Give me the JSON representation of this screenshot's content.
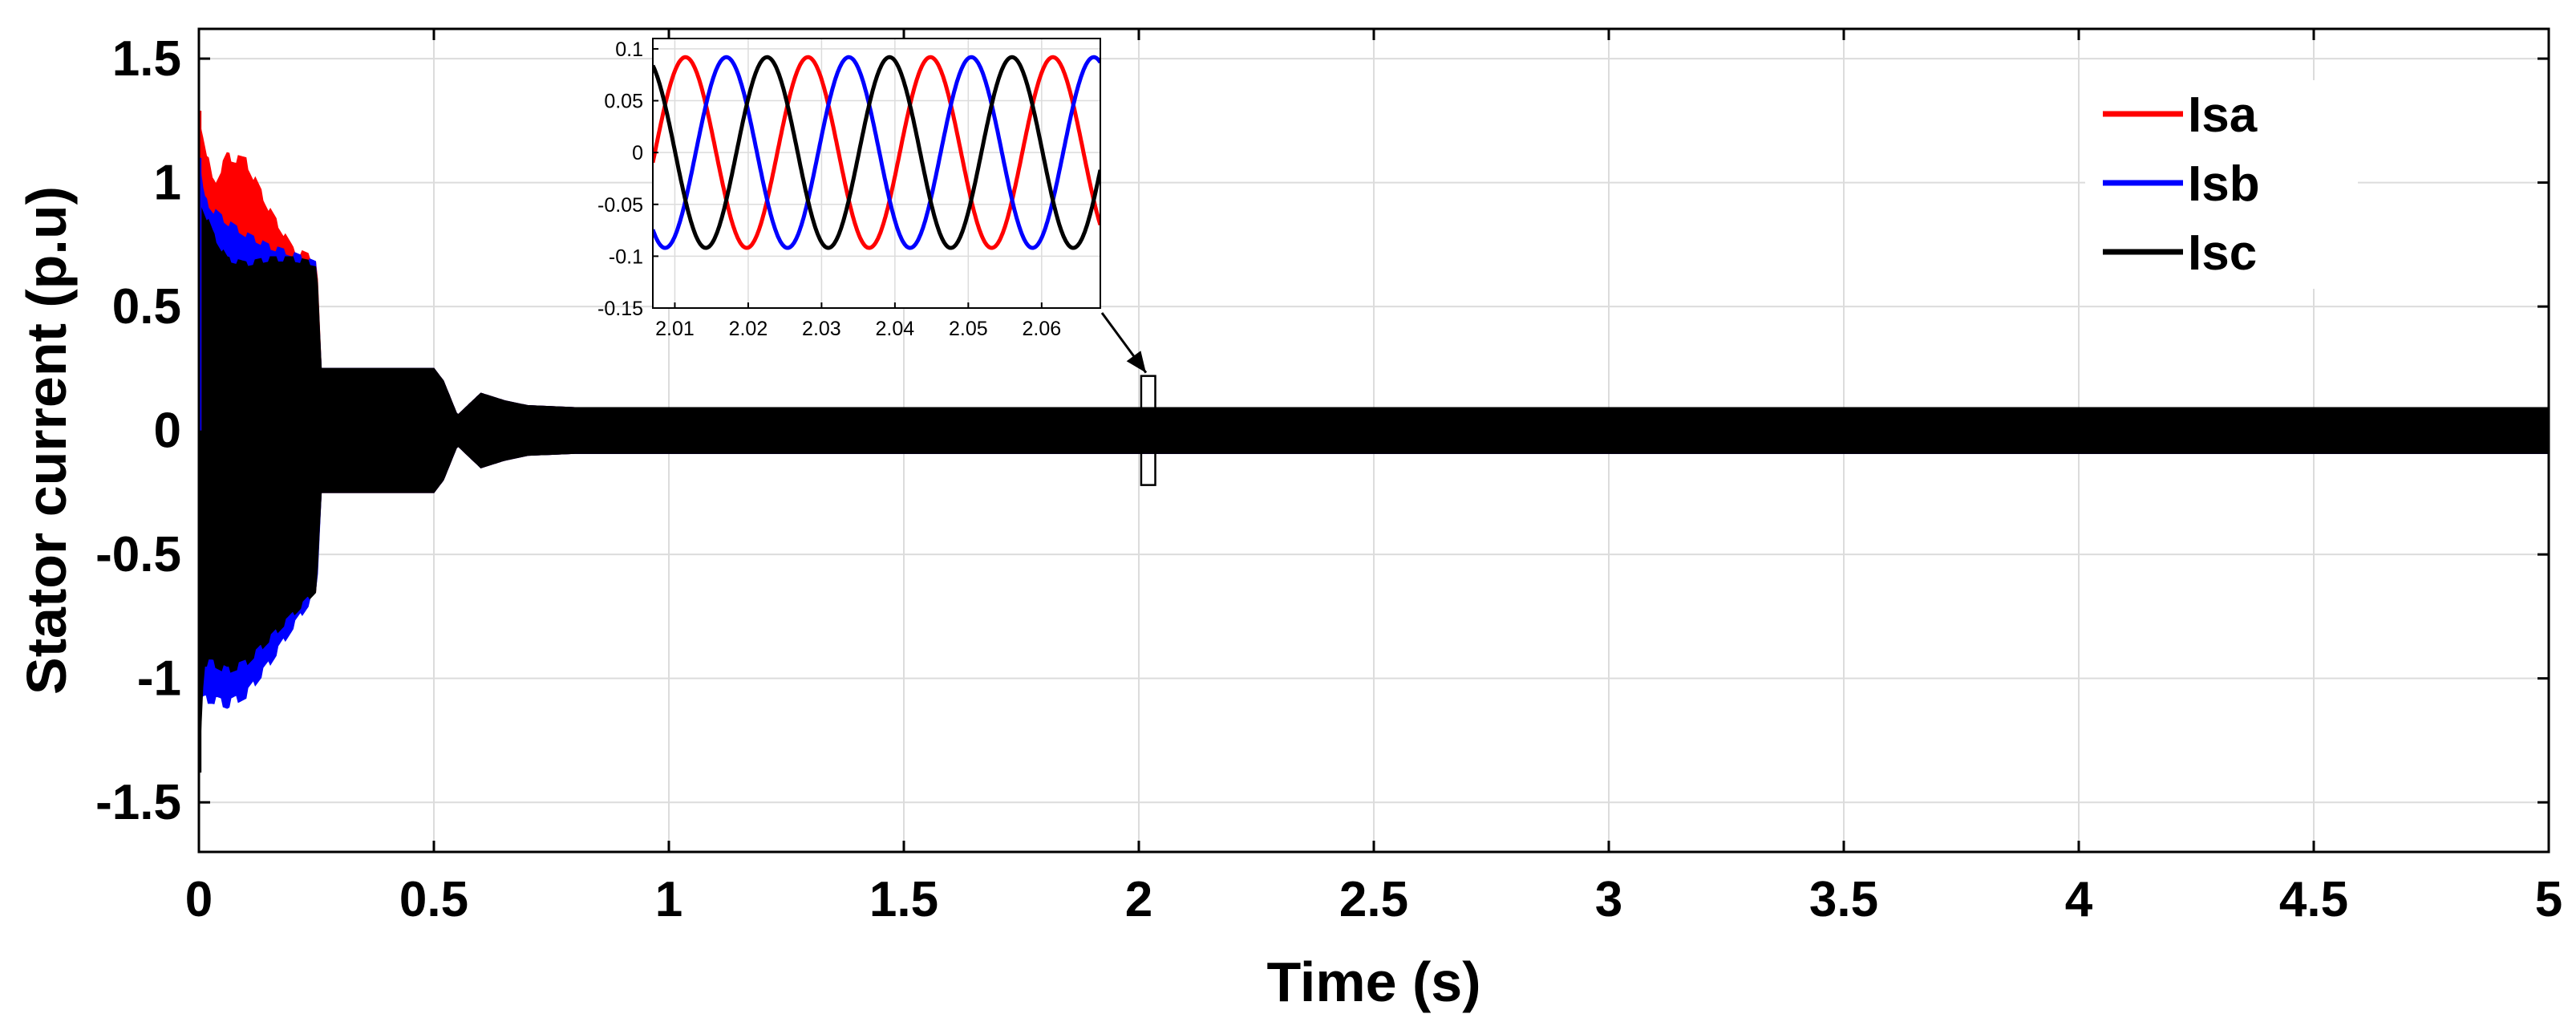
{
  "chart_data": [
    {
      "type": "line",
      "title": "",
      "xlabel": "Time (s)",
      "ylabel": "Stator current (p.u)",
      "xlim": [
        0,
        5
      ],
      "ylim": [
        -1.7,
        1.62
      ],
      "xticks": [
        0,
        0.5,
        1,
        1.5,
        2,
        2.5,
        3,
        3.5,
        4,
        4.5,
        5
      ],
      "xtick_labels": [
        "0",
        "0.5",
        "1",
        "1.5",
        "2",
        "2.5",
        "3",
        "3.5",
        "4",
        "4.5",
        "5"
      ],
      "yticks": [
        1.5,
        1,
        0.5,
        0,
        -0.5,
        -1,
        -1.5
      ],
      "ytick_labels": [
        "1.5",
        "1",
        "0.5",
        "0",
        "-0.5",
        "-1",
        "-1.5"
      ],
      "grid": true,
      "legend_position": "top-right",
      "series": [
        {
          "name": "Isa",
          "color": "#ff0000",
          "envelope": {
            "x": [
              0,
              0.01,
              0.03,
              0.06,
              0.1,
              0.15,
              0.2,
              0.25,
              0.26,
              0.5,
              0.52,
              0.55,
              0.6,
              0.65,
              0.7,
              0.8,
              5
            ],
            "upper": [
              1.29,
              1.2,
              1.0,
              1.12,
              1.1,
              0.9,
              0.74,
              0.7,
              0.25,
              0.25,
              0.2,
              0.06,
              0.15,
              0.12,
              0.1,
              0.092,
              0.092
            ],
            "lower": [
              -1.0,
              -0.95,
              -0.95,
              -0.95,
              -0.85,
              -0.78,
              -0.72,
              -0.65,
              -0.25,
              -0.25,
              -0.2,
              -0.06,
              -0.15,
              -0.12,
              -0.1,
              -0.092,
              -0.092
            ]
          }
        },
        {
          "name": "Isb",
          "color": "#0000ff",
          "envelope": {
            "x": [
              0,
              0.01,
              0.03,
              0.06,
              0.1,
              0.15,
              0.2,
              0.25,
              0.26,
              0.5,
              0.52,
              0.55,
              0.6,
              0.65,
              0.7,
              0.8,
              5
            ],
            "upper": [
              1.1,
              0.95,
              0.9,
              0.85,
              0.8,
              0.75,
              0.72,
              0.68,
              0.25,
              0.25,
              0.2,
              0.06,
              0.15,
              0.12,
              0.1,
              0.092,
              0.092
            ],
            "lower": [
              -1.12,
              -1.1,
              -1.1,
              -1.12,
              -1.08,
              -0.95,
              -0.8,
              -0.66,
              -0.25,
              -0.25,
              -0.2,
              -0.06,
              -0.15,
              -0.12,
              -0.1,
              -0.092,
              -0.092
            ]
          }
        },
        {
          "name": "Isc",
          "color": "#000000",
          "envelope": {
            "x": [
              0,
              0.01,
              0.03,
              0.06,
              0.1,
              0.15,
              0.2,
              0.25,
              0.26,
              0.5,
              0.52,
              0.55,
              0.6,
              0.65,
              0.7,
              0.8,
              5
            ],
            "upper": [
              0.95,
              0.9,
              0.8,
              0.7,
              0.68,
              0.7,
              0.7,
              0.68,
              0.25,
              0.25,
              0.2,
              0.06,
              0.15,
              0.12,
              0.1,
              0.092,
              0.092
            ],
            "lower": [
              -1.38,
              -0.95,
              -0.95,
              -0.98,
              -0.95,
              -0.85,
              -0.75,
              -0.65,
              -0.25,
              -0.25,
              -0.2,
              -0.06,
              -0.15,
              -0.12,
              -0.1,
              -0.092,
              -0.092
            ]
          }
        }
      ],
      "annotation": {
        "zoom_box": {
          "x": [
            2.005,
            2.035
          ],
          "y": [
            -0.22,
            0.22
          ]
        },
        "arrow": "from inset to zoom box"
      }
    },
    {
      "type": "line",
      "title": "",
      "inset": true,
      "xlim": [
        2.007,
        2.068
      ],
      "ylim": [
        -0.15,
        0.11
      ],
      "xticks": [
        2.01,
        2.02,
        2.03,
        2.04,
        2.05,
        2.06
      ],
      "xtick_labels": [
        "2.01",
        "2.02",
        "2.03",
        "2.04",
        "2.05",
        "2.06"
      ],
      "yticks": [
        0.1,
        0.05,
        0,
        -0.05,
        -0.1,
        -0.15
      ],
      "ytick_labels": [
        "0.1",
        "0.05",
        "0",
        "-0.05",
        "-0.1",
        "-0.15"
      ],
      "grid": true,
      "series": [
        {
          "name": "Isa",
          "color": "#ff0000",
          "amplitude": 0.092,
          "frequency_hz": 59.9,
          "zero_crossing_rising": 2.00728
        },
        {
          "name": "Isb",
          "color": "#0000ff",
          "amplitude": 0.092,
          "frequency_hz": 59.9,
          "zero_crossing_rising": 2.01285
        },
        {
          "name": "Isc",
          "color": "#000000",
          "amplitude": 0.092,
          "frequency_hz": 59.9,
          "zero_crossing_rising": 2.0184
        }
      ]
    }
  ]
}
